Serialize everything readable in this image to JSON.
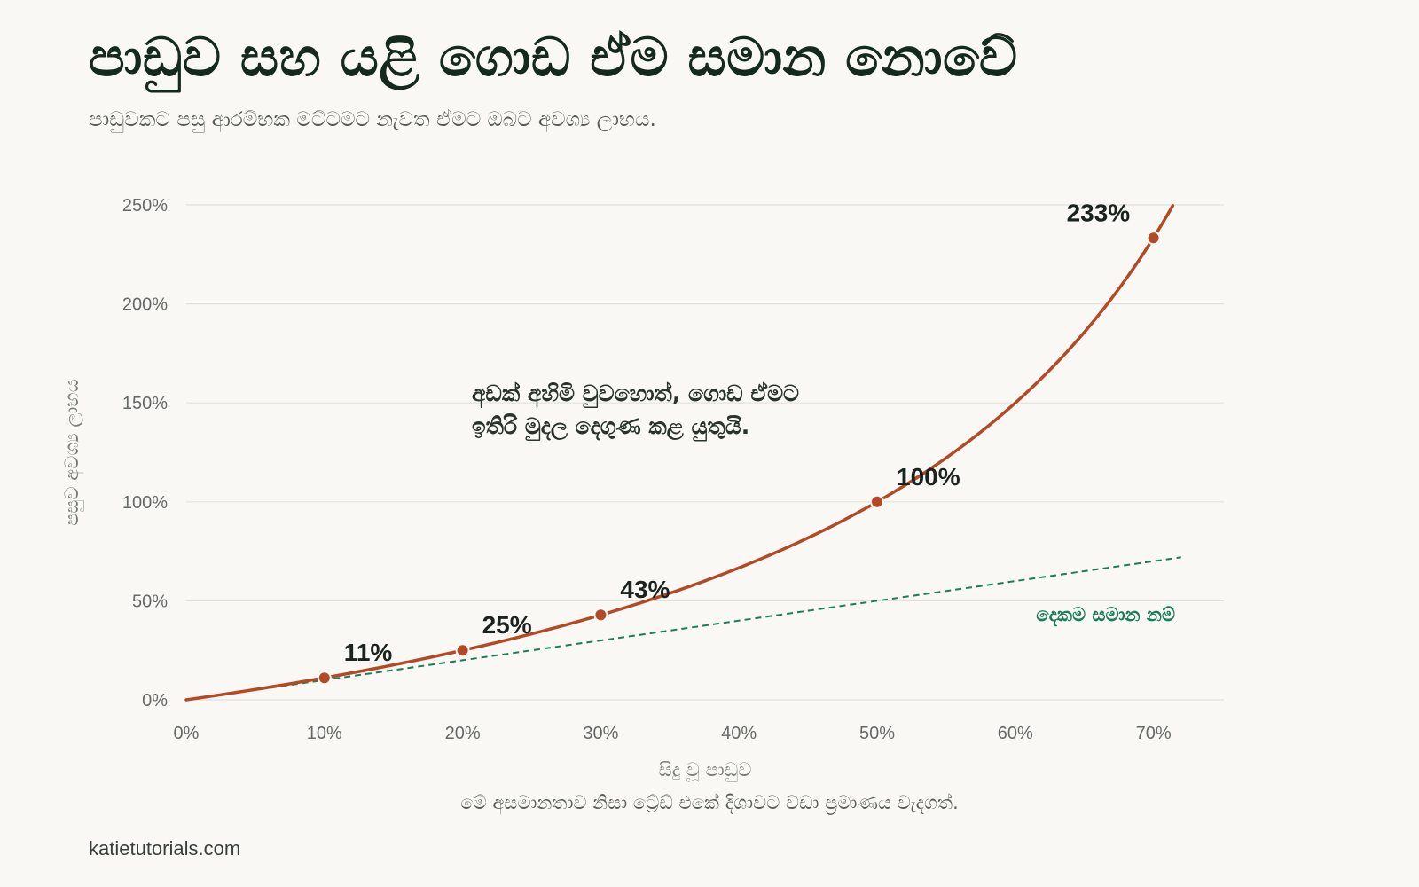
{
  "header": {
    "title": "පාඩුව සහ යළි ගොඩ ඒම සමාන නොවේ",
    "subtitle": "පාඩුවකට පසු ආරම්භක මට්ටමට නැවත ඒමට ඔබට අවශ්‍ය ලාභය."
  },
  "footer": {
    "caption": "මේ අසමානතාව නිසා ට්‍රේඩ් එකේ දිශාවට වඩා ප්‍රමාණය වැදගත්.",
    "site": "katietutorials.com"
  },
  "colors": {
    "curve": "#b34a26",
    "reference": "#1b7d5a",
    "grid": "#e2e2dc"
  },
  "chart_data": {
    "type": "line",
    "xlabel": "සිදු වූ පාඩුව",
    "ylabel": "පසුව අවශ්‍ය ලාභය",
    "xlim": [
      0,
      0.72
    ],
    "ylim": [
      0,
      2.5
    ],
    "x_ticks": [
      {
        "value": 0,
        "label": "0%"
      },
      {
        "value": 0.1,
        "label": "10%"
      },
      {
        "value": 0.2,
        "label": "20%"
      },
      {
        "value": 0.3,
        "label": "30%"
      },
      {
        "value": 0.4,
        "label": "40%"
      },
      {
        "value": 0.5,
        "label": "50%"
      },
      {
        "value": 0.6,
        "label": "60%"
      },
      {
        "value": 0.7,
        "label": "70%"
      }
    ],
    "y_ticks": [
      {
        "value": 0,
        "label": "0%"
      },
      {
        "value": 0.5,
        "label": "50%"
      },
      {
        "value": 1.0,
        "label": "100%"
      },
      {
        "value": 1.5,
        "label": "150%"
      },
      {
        "value": 2.0,
        "label": "200%"
      },
      {
        "value": 2.5,
        "label": "250%"
      }
    ],
    "grid": "horizontal",
    "series": [
      {
        "role": "recovery-curve",
        "formula": "y = x / (1 - x)",
        "x_range": [
          0,
          0.714
        ],
        "points": [
          {
            "x": 0.1,
            "y": 0.111,
            "label": "11%"
          },
          {
            "x": 0.2,
            "y": 0.25,
            "label": "25%"
          },
          {
            "x": 0.3,
            "y": 0.429,
            "label": "43%"
          },
          {
            "x": 0.5,
            "y": 1.0,
            "label": "100%"
          },
          {
            "x": 0.7,
            "y": 2.333,
            "label": "233%"
          }
        ]
      },
      {
        "role": "equal-reference",
        "name": "දෙකම සමාන නම්",
        "formula": "y = x",
        "x_range": [
          0,
          0.72
        ],
        "style": "dashed"
      }
    ],
    "annotation": {
      "lines": [
        "අඩක් අහිමි වුවහොත්, ගොඩ ඒමට",
        "ඉතිරි මුදල දෙගුණ කළ යුතුයි."
      ]
    }
  }
}
